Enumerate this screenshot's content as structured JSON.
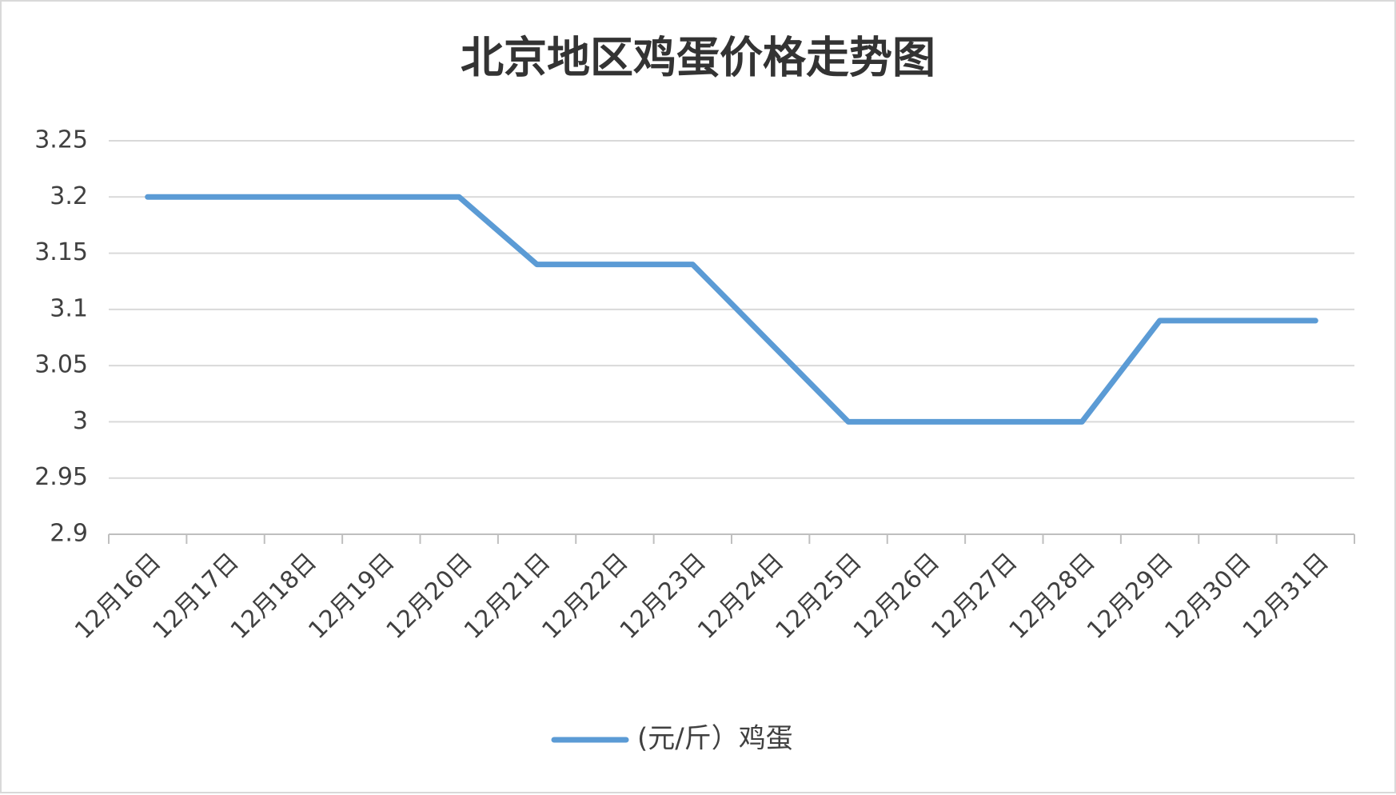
{
  "chart_data": {
    "type": "line",
    "title": "北京地区鸡蛋价格走势图",
    "categories": [
      "12月16日",
      "12月17日",
      "12月18日",
      "12月19日",
      "12月20日",
      "12月21日",
      "12月22日",
      "12月23日",
      "12月24日",
      "12月25日",
      "12月26日",
      "12月27日",
      "12月28日",
      "12月29日",
      "12月30日",
      "12月31日"
    ],
    "series": [
      {
        "name": "(元/斤）鸡蛋",
        "color": "#5b9bd5",
        "values": [
          3.2,
          3.2,
          3.2,
          3.2,
          3.2,
          3.14,
          3.14,
          3.14,
          3.07,
          3.0,
          3.0,
          3.0,
          3.0,
          3.09,
          3.09,
          3.09
        ]
      }
    ],
    "ylim": [
      2.9,
      3.25
    ],
    "yticks": [
      2.9,
      2.95,
      3,
      3.05,
      3.1,
      3.15,
      3.2,
      3.25
    ],
    "grid": true,
    "legend": "bottom"
  }
}
